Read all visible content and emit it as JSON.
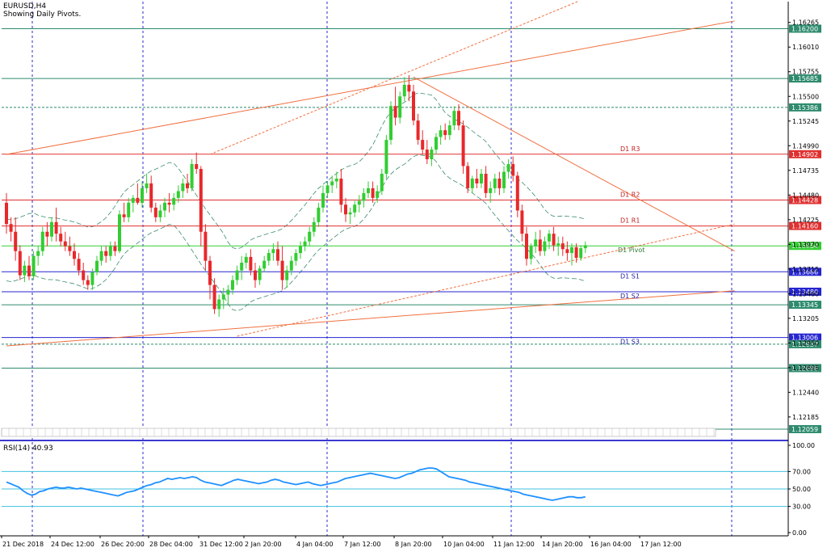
{
  "header": {
    "symbol_label": "EURUSD,H4",
    "subtitle": "Showing Daily Pivots."
  },
  "colors": {
    "bull": "#32CD32",
    "bear": "#E8282B",
    "grid": "#2B2BCF",
    "teal_level": "#2E8B6E",
    "red_level": "#E03030",
    "blue_level": "#2525D0",
    "trend": "#F07040",
    "envelope": "#3C8C6C",
    "rsi": "#1E90FF",
    "rsi_level": "#40C0E0"
  },
  "chart_data": [
    {
      "type": "candlestick",
      "title": "EURUSD,H4",
      "subtitle": "Showing Daily Pivots.",
      "ylim": [
        1.1195,
        1.1648
      ],
      "y_ticks": [
        "1.16265",
        "1.16010",
        "1.15755",
        "1.15500",
        "1.15245",
        "1.14990",
        "1.14735",
        "1.14480",
        "1.14225",
        "1.13970",
        "1.13715",
        "1.13460",
        "1.13205",
        "1.12950",
        "1.12695",
        "1.12440",
        "1.12185"
      ],
      "x_tick_labels": [
        "21 Dec 2018",
        "24 Dec 12:00",
        "26 Dec 20:00",
        "28 Dec 04:00",
        "31 Dec 12:00",
        "2 Jan 20:00",
        "4 Jan 04:00",
        "7 Jan 12:00",
        "8 Jan 20:00",
        "10 Jan 04:00",
        "11 Jan 12:00",
        "14 Jan 20:00",
        "16 Jan 04:00",
        "17 Jan 12:00"
      ],
      "pivot_levels": [
        {
          "name": "D1 R3",
          "value": 1.14902,
          "kind": "red"
        },
        {
          "name": "D1 R2",
          "value": 1.14428,
          "kind": "red"
        },
        {
          "name": "D1 R1",
          "value": 1.1416,
          "kind": "red"
        },
        {
          "name": "D1 Pivot",
          "value": 1.13954,
          "kind": "green"
        },
        {
          "name": "D1 S1",
          "value": 1.13686,
          "kind": "blue"
        },
        {
          "name": "D1 S2",
          "value": 1.1348,
          "kind": "blue"
        },
        {
          "name": "D1 S3",
          "value": 1.13006,
          "kind": "blue"
        }
      ],
      "levels": [
        {
          "label": "1.16200",
          "value": 1.162,
          "kind": "teal"
        },
        {
          "label": "1.15685",
          "value": 1.15685,
          "kind": "teal"
        },
        {
          "label": "1.15386",
          "value": 1.15386,
          "kind": "teal_dash"
        },
        {
          "label": "1.14902",
          "value": 1.14902,
          "kind": "red"
        },
        {
          "label": "1.14428",
          "value": 1.14428,
          "kind": "red"
        },
        {
          "label": "1.14160",
          "value": 1.1416,
          "kind": "red"
        },
        {
          "label": "1.13954",
          "value": 1.13954,
          "kind": "green"
        },
        {
          "label": "1.13686",
          "value": 1.13686,
          "kind": "blue"
        },
        {
          "label": "1.13480",
          "value": 1.1348,
          "kind": "blue"
        },
        {
          "label": "1.13345",
          "value": 1.13345,
          "kind": "teal"
        },
        {
          "label": "1.13006",
          "value": 1.13006,
          "kind": "blue"
        },
        {
          "label": "1.12937",
          "value": 1.12937,
          "kind": "teal_dash"
        },
        {
          "label": "1.12690",
          "value": 1.1269,
          "kind": "teal"
        },
        {
          "label": "1.12059",
          "value": 1.12059,
          "kind": "teal"
        }
      ],
      "trendlines": [
        {
          "style": "solid",
          "from": [
            0,
            1.149
          ],
          "to": [
            161,
            1.1628
          ]
        },
        {
          "style": "solid",
          "from": [
            0,
            1.1292
          ],
          "to": [
            161,
            1.1349
          ]
        },
        {
          "style": "solid",
          "from": [
            90,
            1.157
          ],
          "to": [
            161,
            1.139
          ]
        },
        {
          "style": "dashed",
          "from": [
            51,
            1.1302
          ],
          "to": [
            161,
            1.1418
          ]
        },
        {
          "style": "dashed",
          "from": [
            45,
            1.149
          ],
          "to": [
            135,
            1.1665
          ]
        }
      ],
      "candles": [
        [
          1.144,
          1.145,
          1.1408,
          1.1418
        ],
        [
          1.1418,
          1.1425,
          1.14,
          1.141
        ],
        [
          1.141,
          1.1425,
          1.138,
          1.139
        ],
        [
          1.139,
          1.1396,
          1.136,
          1.1365
        ],
        [
          1.1365,
          1.138,
          1.1358,
          1.1375
        ],
        [
          1.1375,
          1.1385,
          1.136,
          1.1364
        ],
        [
          1.1364,
          1.139,
          1.136,
          1.1385
        ],
        [
          1.1385,
          1.1395,
          1.1375,
          1.139
        ],
        [
          1.139,
          1.1415,
          1.1385,
          1.141
        ],
        [
          1.141,
          1.142,
          1.1395,
          1.1405
        ],
        [
          1.1405,
          1.1425,
          1.14,
          1.142
        ],
        [
          1.142,
          1.1435,
          1.14,
          1.1408
        ],
        [
          1.1408,
          1.1415,
          1.1395,
          1.14
        ],
        [
          1.14,
          1.141,
          1.139,
          1.1395
        ],
        [
          1.1395,
          1.1405,
          1.1385,
          1.139
        ],
        [
          1.139,
          1.1398,
          1.1375,
          1.1382
        ],
        [
          1.1382,
          1.1388,
          1.1365,
          1.137
        ],
        [
          1.137,
          1.1378,
          1.1355,
          1.136
        ],
        [
          1.136,
          1.1365,
          1.135,
          1.1355
        ],
        [
          1.1355,
          1.1372,
          1.135,
          1.1368
        ],
        [
          1.1368,
          1.1385,
          1.1365,
          1.138
        ],
        [
          1.138,
          1.1395,
          1.1375,
          1.139
        ],
        [
          1.139,
          1.1395,
          1.1378,
          1.1385
        ],
        [
          1.1385,
          1.14,
          1.138,
          1.1395
        ],
        [
          1.1395,
          1.14,
          1.1385,
          1.139
        ],
        [
          1.139,
          1.1432,
          1.1388,
          1.1428
        ],
        [
          1.1428,
          1.144,
          1.142,
          1.1425
        ],
        [
          1.1425,
          1.1445,
          1.142,
          1.144
        ],
        [
          1.144,
          1.1448,
          1.143,
          1.1445
        ],
        [
          1.1445,
          1.146,
          1.1438,
          1.144
        ],
        [
          1.144,
          1.1462,
          1.1435,
          1.1455
        ],
        [
          1.1455,
          1.147,
          1.145,
          1.146
        ],
        [
          1.146,
          1.1468,
          1.143,
          1.1435
        ],
        [
          1.1435,
          1.144,
          1.142,
          1.1425
        ],
        [
          1.1425,
          1.1438,
          1.142,
          1.1432
        ],
        [
          1.1432,
          1.1445,
          1.1425,
          1.144
        ],
        [
          1.144,
          1.145,
          1.143,
          1.1438
        ],
        [
          1.1438,
          1.145,
          1.1432,
          1.1445
        ],
        [
          1.1445,
          1.1458,
          1.144,
          1.1452
        ],
        [
          1.1452,
          1.1465,
          1.1445,
          1.146
        ],
        [
          1.146,
          1.147,
          1.145,
          1.1455
        ],
        [
          1.1455,
          1.1485,
          1.1452,
          1.148
        ],
        [
          1.148,
          1.1492,
          1.147,
          1.1475
        ],
        [
          1.1475,
          1.1478,
          1.1395,
          1.141
        ],
        [
          1.141,
          1.1418,
          1.137,
          1.138
        ],
        [
          1.138,
          1.1385,
          1.134,
          1.1355
        ],
        [
          1.1355,
          1.1362,
          1.1325,
          1.133
        ],
        [
          1.133,
          1.1345,
          1.1322,
          1.134
        ],
        [
          1.134,
          1.1352,
          1.133,
          1.1345
        ],
        [
          1.1345,
          1.1355,
          1.1335,
          1.135
        ],
        [
          1.135,
          1.1365,
          1.1345,
          1.136
        ],
        [
          1.136,
          1.1375,
          1.1355,
          1.137
        ],
        [
          1.137,
          1.1385,
          1.136,
          1.1378
        ],
        [
          1.1378,
          1.1388,
          1.1372,
          1.1384
        ],
        [
          1.1384,
          1.1392,
          1.1365,
          1.137
        ],
        [
          1.137,
          1.1378,
          1.1352,
          1.136
        ],
        [
          1.136,
          1.1375,
          1.1355,
          1.1372
        ],
        [
          1.1372,
          1.1385,
          1.1368,
          1.138
        ],
        [
          1.138,
          1.1392,
          1.1375,
          1.1388
        ],
        [
          1.1388,
          1.1398,
          1.138,
          1.1392
        ],
        [
          1.1392,
          1.14,
          1.1375,
          1.138
        ],
        [
          1.138,
          1.1395,
          1.135,
          1.136
        ],
        [
          1.136,
          1.1375,
          1.1352,
          1.137
        ],
        [
          1.137,
          1.1385,
          1.1365,
          1.138
        ],
        [
          1.138,
          1.1392,
          1.1375,
          1.1388
        ],
        [
          1.1388,
          1.14,
          1.1382,
          1.1395
        ],
        [
          1.1395,
          1.1405,
          1.139,
          1.14
        ],
        [
          1.14,
          1.1415,
          1.1395,
          1.141
        ],
        [
          1.141,
          1.1425,
          1.1405,
          1.142
        ],
        [
          1.142,
          1.144,
          1.1415,
          1.1435
        ],
        [
          1.1435,
          1.1458,
          1.143,
          1.145
        ],
        [
          1.145,
          1.1462,
          1.1445,
          1.1458
        ],
        [
          1.1458,
          1.1468,
          1.145,
          1.1462
        ],
        [
          1.1462,
          1.1472,
          1.1455,
          1.1465
        ],
        [
          1.1465,
          1.1475,
          1.143,
          1.1438
        ],
        [
          1.1438,
          1.1445,
          1.142,
          1.1428
        ],
        [
          1.1428,
          1.1435,
          1.1418,
          1.143
        ],
        [
          1.143,
          1.1442,
          1.1425,
          1.1438
        ],
        [
          1.1438,
          1.1448,
          1.143,
          1.1442
        ],
        [
          1.1442,
          1.1455,
          1.1435,
          1.145
        ],
        [
          1.145,
          1.1462,
          1.1445,
          1.1455
        ],
        [
          1.1455,
          1.1462,
          1.144,
          1.1445
        ],
        [
          1.1445,
          1.1458,
          1.144,
          1.1452
        ],
        [
          1.1452,
          1.1475,
          1.1448,
          1.147
        ],
        [
          1.147,
          1.151,
          1.1465,
          1.1505
        ],
        [
          1.1505,
          1.1545,
          1.15,
          1.154
        ],
        [
          1.154,
          1.156,
          1.152,
          1.1528
        ],
        [
          1.1528,
          1.1555,
          1.1522,
          1.155
        ],
        [
          1.155,
          1.157,
          1.1545,
          1.1562
        ],
        [
          1.1562,
          1.1572,
          1.1545,
          1.1555
        ],
        [
          1.1555,
          1.1562,
          1.152,
          1.1525
        ],
        [
          1.1525,
          1.1532,
          1.15,
          1.1505
        ],
        [
          1.1505,
          1.1515,
          1.149,
          1.1495
        ],
        [
          1.1495,
          1.1505,
          1.148,
          1.1485
        ],
        [
          1.1485,
          1.1498,
          1.1478,
          1.1495
        ],
        [
          1.1495,
          1.1512,
          1.149,
          1.1508
        ],
        [
          1.1508,
          1.152,
          1.15,
          1.1515
        ],
        [
          1.1515,
          1.1522,
          1.1505,
          1.151
        ],
        [
          1.151,
          1.1525,
          1.1505,
          1.152
        ],
        [
          1.152,
          1.154,
          1.1515,
          1.1535
        ],
        [
          1.1535,
          1.1542,
          1.1515,
          1.152
        ],
        [
          1.152,
          1.1525,
          1.147,
          1.1478
        ],
        [
          1.1478,
          1.1482,
          1.145,
          1.1455
        ],
        [
          1.1455,
          1.1468,
          1.145,
          1.1465
        ],
        [
          1.1465,
          1.1475,
          1.1455,
          1.146
        ],
        [
          1.146,
          1.1475,
          1.1455,
          1.147
        ],
        [
          1.147,
          1.1478,
          1.1445,
          1.145
        ],
        [
          1.145,
          1.1462,
          1.144,
          1.1455
        ],
        [
          1.1455,
          1.147,
          1.145,
          1.1465
        ],
        [
          1.1465,
          1.1472,
          1.1448,
          1.1455
        ],
        [
          1.1455,
          1.1478,
          1.145,
          1.1472
        ],
        [
          1.1472,
          1.1485,
          1.1465,
          1.148
        ],
        [
          1.148,
          1.1488,
          1.1462,
          1.1468
        ],
        [
          1.1468,
          1.1472,
          1.1425,
          1.1432
        ],
        [
          1.1432,
          1.1438,
          1.14,
          1.1408
        ],
        [
          1.1408,
          1.1415,
          1.1375,
          1.1382
        ],
        [
          1.1382,
          1.1398,
          1.1376,
          1.1395
        ],
        [
          1.1395,
          1.141,
          1.1388,
          1.1402
        ],
        [
          1.1402,
          1.1412,
          1.1385,
          1.139
        ],
        [
          1.139,
          1.1405,
          1.1385,
          1.14
        ],
        [
          1.14,
          1.1412,
          1.1392,
          1.1408
        ],
        [
          1.1408,
          1.1415,
          1.139,
          1.1396
        ],
        [
          1.1396,
          1.1405,
          1.1385,
          1.1398
        ],
        [
          1.1398,
          1.1405,
          1.1385,
          1.1392
        ],
        [
          1.1392,
          1.14,
          1.138,
          1.1388
        ],
        [
          1.1388,
          1.1398,
          1.1375,
          1.1394
        ],
        [
          1.1394,
          1.1398,
          1.1378,
          1.1383
        ],
        [
          1.1383,
          1.1396,
          1.138,
          1.1393
        ],
        [
          1.1393,
          1.14,
          1.1388,
          1.1396
        ]
      ]
    },
    {
      "type": "line",
      "title": "RSI(14) 40.93",
      "ylim": [
        0,
        100
      ],
      "y_ticks": [
        "100.00",
        "70.00",
        "50.00",
        "30.00",
        "0.00"
      ],
      "levels": [
        70,
        50,
        30
      ],
      "values": [
        58,
        56,
        54,
        52,
        48,
        45,
        43,
        44,
        47,
        48,
        50,
        51,
        52,
        51,
        51,
        52,
        51,
        50,
        51,
        50,
        49,
        48,
        47,
        46,
        45,
        44,
        43,
        42,
        44,
        46,
        47,
        48,
        50,
        52,
        54,
        55,
        57,
        58,
        60,
        62,
        61,
        62,
        63,
        62,
        63,
        64,
        63,
        60,
        58,
        57,
        56,
        55,
        54,
        56,
        58,
        60,
        61,
        60,
        59,
        58,
        57,
        56,
        57,
        58,
        60,
        61,
        60,
        58,
        57,
        56,
        55,
        56,
        57,
        58,
        56,
        55,
        54,
        55,
        56,
        57,
        58,
        60,
        62,
        63,
        64,
        65,
        66,
        67,
        68,
        67,
        66,
        65,
        64,
        63,
        62,
        63,
        65,
        67,
        68,
        70,
        72,
        73,
        74,
        74,
        73,
        70,
        67,
        64,
        63,
        62,
        61,
        60,
        58,
        57,
        56,
        55,
        54,
        53,
        52,
        51,
        50,
        49,
        48,
        47,
        46,
        44,
        43,
        42,
        41,
        40,
        39,
        38,
        37,
        38,
        39,
        40,
        41,
        41,
        40,
        40,
        41
      ],
      "current_value": 40.93
    }
  ],
  "rsi_label": "RSI(14) 40.93"
}
